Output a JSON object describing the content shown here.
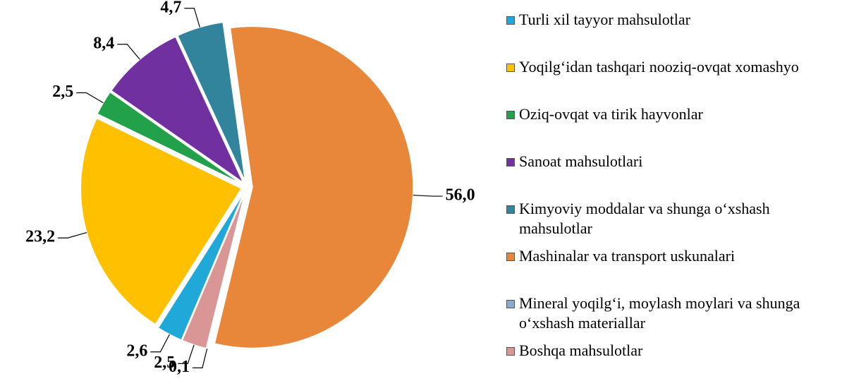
{
  "chart_data": {
    "type": "pie",
    "categories": [
      "Turli xil tayyor mahsulotlar",
      "Yoqilg‘idan tashqari nooziq-ovqat xomashyo",
      "Oziq-ovqat va tirik hayvonlar",
      "Sanoat mahsulotlari",
      "Kimyoviy moddalar va shunga o‘xshash mahsulotlar",
      "Mashinalar va transport uskunalari",
      "Mineral yoqilg‘i, moylash moylari va shunga o‘xshash materiallar",
      "Boshqa mahsulotlar"
    ],
    "values": [
      2.6,
      23.2,
      2.5,
      8.4,
      4.7,
      56.0,
      0.1,
      2.5
    ],
    "value_labels": [
      "2,6",
      "23,2",
      "2,5",
      "8,4",
      "4,7",
      "56,0",
      "0,1",
      "2,5"
    ],
    "colors": [
      "#1fa8d8",
      "#ffc000",
      "#22a04a",
      "#7030a0",
      "#31849b",
      "#e8873a",
      "#8fa8d0",
      "#d99694"
    ]
  }
}
